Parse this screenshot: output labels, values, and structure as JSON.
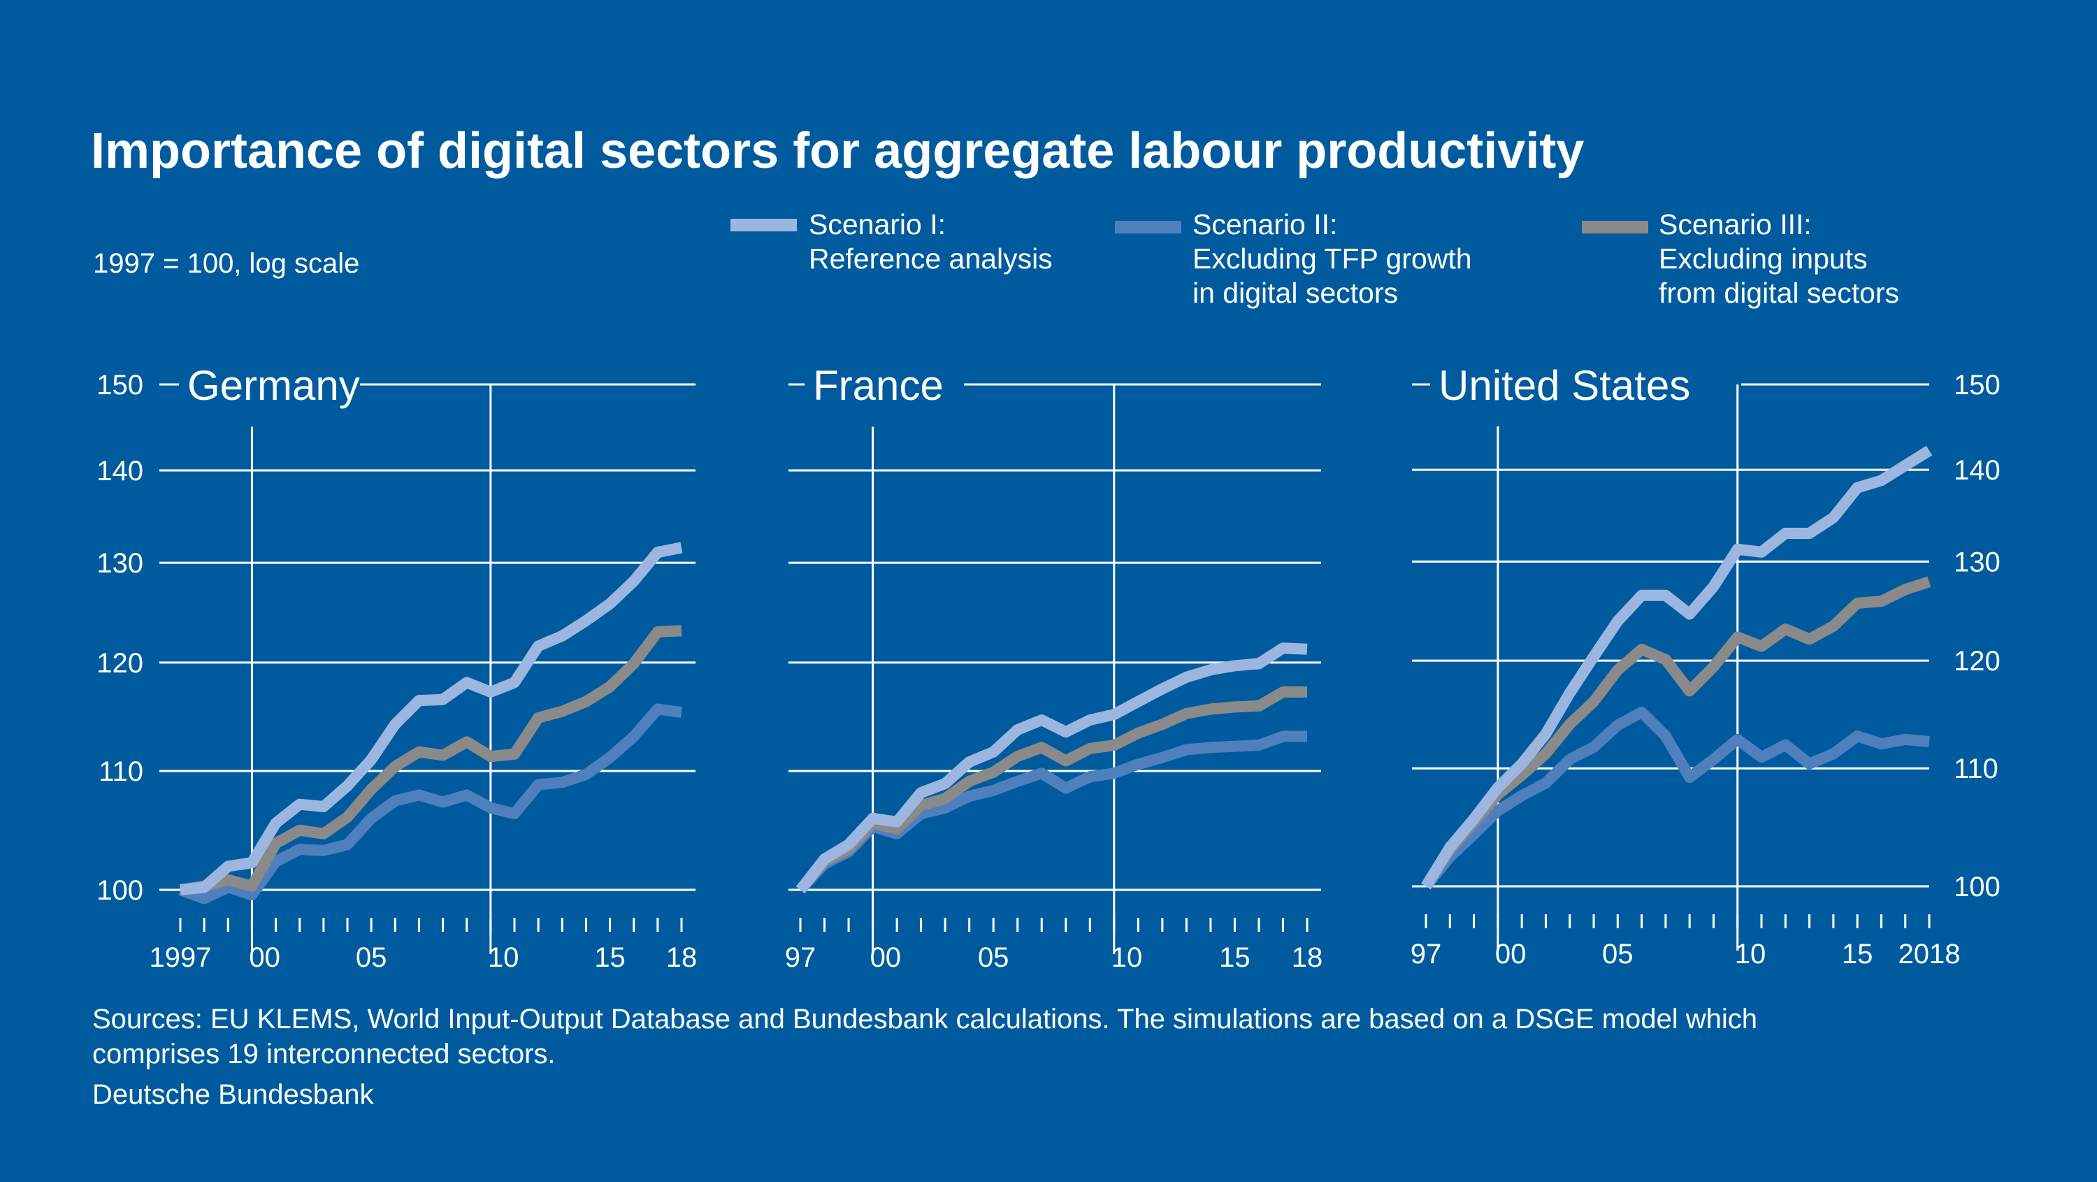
{
  "chart_data": {
    "type": "line",
    "title": "Importance of digital sectors for aggregate labour productivity",
    "subtitle": "1997 = 100, log scale",
    "y_scale": "log",
    "ylim": [
      98,
      152
    ],
    "yticks": [
      100,
      110,
      120,
      130,
      140,
      150
    ],
    "legend": [
      {
        "key": "s1",
        "line1": "Scenario I:",
        "line2": "Reference analysis",
        "line3": "",
        "color": "#9db6df"
      },
      {
        "key": "s2",
        "line1": "Scenario II:",
        "line2": "Excluding TFP growth",
        "line3": "in digital sectors",
        "color": "#4f7fbc"
      },
      {
        "key": "s3",
        "line1": "Scenario III:",
        "line2": "Excluding inputs",
        "line3": "from digital sectors",
        "color": "#8a8a8a"
      }
    ],
    "panels": [
      {
        "name": "Germany",
        "xlim": [
          1997,
          2018
        ],
        "x": [
          1997,
          1998,
          1999,
          2000,
          2001,
          2002,
          2003,
          2004,
          2005,
          2006,
          2007,
          2008,
          2009,
          2010,
          2011,
          2012,
          2013,
          2014,
          2015,
          2016,
          2017,
          2018
        ],
        "series": [
          {
            "key": "s1",
            "name": "Scenario I",
            "values": [
              100,
              100.2,
              101.9,
              102.2,
              105.5,
              107.1,
              106.9,
              108.7,
              111.0,
              114.2,
              116.4,
              116.5,
              118.1,
              117.2,
              118.1,
              121.6,
              122.6,
              124.1,
              125.8,
              128.1,
              131.1,
              131.6
            ]
          },
          {
            "key": "s2",
            "name": "Scenario II",
            "values": [
              100,
              99.3,
              100.2,
              99.6,
              102.3,
              103.3,
              103.2,
              103.7,
              105.9,
              107.4,
              107.9,
              107.3,
              107.9,
              106.8,
              106.3,
              108.8,
              109.0,
              109.7,
              111.2,
              113.1,
              115.6,
              115.3
            ]
          },
          {
            "key": "s3",
            "name": "Scenario III",
            "values": [
              100,
              100.3,
              100.8,
              100.3,
              103.8,
              104.9,
              104.6,
              106.0,
              108.4,
              110.4,
              111.7,
              111.4,
              112.6,
              111.3,
              111.5,
              114.8,
              115.4,
              116.3,
              117.7,
              119.9,
              123.0,
              123.1
            ]
          }
        ],
        "xticks": [
          {
            "year": 1997,
            "label": "1997"
          },
          {
            "year": 2000,
            "label": "00"
          },
          {
            "year": 2005,
            "label": "05"
          },
          {
            "year": 2010,
            "label": "10"
          },
          {
            "year": 2015,
            "label": "15"
          },
          {
            "year": 2018,
            "label": "18"
          }
        ]
      },
      {
        "name": "France",
        "xlim": [
          1997,
          2018
        ],
        "x": [
          1997,
          1998,
          1999,
          2000,
          2001,
          2002,
          2003,
          2004,
          2005,
          2006,
          2007,
          2008,
          2009,
          2010,
          2011,
          2012,
          2013,
          2014,
          2015,
          2016,
          2017,
          2018
        ],
        "series": [
          {
            "key": "s1",
            "name": "Scenario I",
            "values": [
              100,
              102.5,
              103.7,
              105.9,
              105.6,
              108.1,
              108.9,
              110.8,
              111.7,
              113.7,
              114.6,
              113.5,
              114.6,
              115.1,
              116.3,
              117.5,
              118.6,
              119.3,
              119.7,
              119.9,
              121.4,
              121.3
            ]
          },
          {
            "key": "s2",
            "name": "Scenario II",
            "values": [
              100,
              102.1,
              103.1,
              105.2,
              104.6,
              106.3,
              106.8,
              107.8,
              108.3,
              109.1,
              109.8,
              108.5,
              109.5,
              109.8,
              110.6,
              111.2,
              111.9,
              112.1,
              112.2,
              112.3,
              113.1,
              113.1
            ]
          },
          {
            "key": "s3",
            "name": "Scenario III",
            "values": [
              100,
              102.3,
              103.3,
              105.5,
              105.0,
              107.0,
              107.6,
              109.1,
              109.9,
              111.3,
              112.1,
              110.9,
              112.0,
              112.3,
              113.4,
              114.2,
              115.2,
              115.6,
              115.8,
              115.9,
              117.2,
              117.2
            ]
          }
        ],
        "xticks": [
          {
            "year": 1997,
            "label": "97"
          },
          {
            "year": 2000,
            "label": "00"
          },
          {
            "year": 2005,
            "label": "05"
          },
          {
            "year": 2010,
            "label": "10"
          },
          {
            "year": 2015,
            "label": "15"
          },
          {
            "year": 2018,
            "label": "18"
          }
        ]
      },
      {
        "name": "United States",
        "xlim": [
          1997,
          2018
        ],
        "x": [
          1997,
          1998,
          1999,
          2000,
          2001,
          2002,
          2003,
          2004,
          2005,
          2006,
          2007,
          2008,
          2009,
          2010,
          2011,
          2012,
          2013,
          2014,
          2015,
          2016,
          2017,
          2018
        ],
        "series": [
          {
            "key": "s1",
            "name": "Scenario I",
            "values": [
              100,
              103.2,
              105.6,
              108.3,
              110.4,
              113.1,
              116.9,
              120.4,
              123.9,
              126.5,
              126.5,
              124.6,
              127.4,
              131.3,
              131.0,
              133.0,
              133.0,
              134.7,
              138.0,
              138.8,
              140.5,
              142.2
            ]
          },
          {
            "key": "s2",
            "name": "Scenario II",
            "values": [
              100,
              102.4,
              104.3,
              106.3,
              107.6,
              108.7,
              110.8,
              111.9,
              113.9,
              115.1,
              112.9,
              109.2,
              110.8,
              112.6,
              111.0,
              112.1,
              110.4,
              111.3,
              112.9,
              112.2,
              112.6,
              112.4
            ]
          },
          {
            "key": "s3",
            "name": "Scenario III",
            "values": [
              100,
              103.0,
              105.3,
              107.7,
              109.4,
              111.3,
              114.0,
              116.1,
              119.1,
              121.1,
              120.1,
              117.1,
              119.4,
              122.3,
              121.4,
              123.1,
              122.1,
              123.4,
              125.7,
              125.9,
              127.1,
              127.9
            ]
          }
        ],
        "xticks": [
          {
            "year": 1997,
            "label": "97"
          },
          {
            "year": 2000,
            "label": "00"
          },
          {
            "year": 2005,
            "label": "05"
          },
          {
            "year": 2010,
            "label": "10"
          },
          {
            "year": 2015,
            "label": "15"
          },
          {
            "year": 2018,
            "label": "2018"
          }
        ]
      }
    ]
  },
  "footer": {
    "sources_line1": "Sources: EU KLEMS, World Input-Output Database and Bundesbank calculations. The simulations are based on a DSGE model which",
    "sources_line2": "comprises 19 interconnected sectors.",
    "credit": "Deutsche Bundesbank"
  }
}
